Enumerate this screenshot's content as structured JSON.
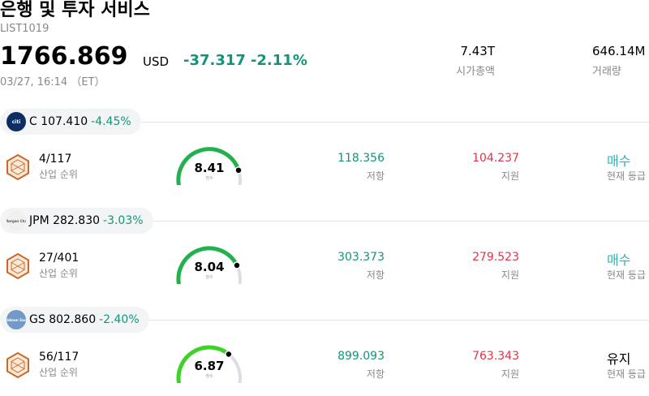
{
  "header": {
    "title": "은행 및 투자 서비스",
    "code": "LIST1019",
    "price": "1766.869",
    "currency": "USD",
    "change": "-37.317",
    "change_pct": "-2.11%",
    "timestamp": "03/27, 16:14 （ET）",
    "market_cap": {
      "value": "7.43T",
      "label": "시가총액"
    },
    "volume": {
      "value": "646.14M",
      "label": "거래량"
    }
  },
  "colors": {
    "up_green": "#11957a",
    "support_red": "#e8304a",
    "buy_teal": "#2ab7b4",
    "gauge_green": "#22b14c"
  },
  "stocks": [
    {
      "ticker": "C",
      "logo_text": "citi",
      "price": "107.410",
      "change_pct": "-4.45%",
      "rank": "4/117",
      "rank_label": "산업 순위",
      "score": "8.41",
      "score_fraction": 0.841,
      "score_label": "점수",
      "resistance": "118.356",
      "resistance_label": "저항",
      "support": "104.237",
      "support_label": "지원",
      "grade": "매수",
      "grade_label": "현재 등급",
      "grade_type": "buy"
    },
    {
      "ticker": "JPM",
      "logo_text": "JPMorgan Chase",
      "price": "282.830",
      "change_pct": "-3.03%",
      "rank": "27/401",
      "rank_label": "산업 순위",
      "score": "8.04",
      "score_fraction": 0.804,
      "score_label": "점수",
      "resistance": "303.373",
      "resistance_label": "저항",
      "support": "279.523",
      "support_label": "지원",
      "grade": "매수",
      "grade_label": "현재 등급",
      "grade_type": "buy"
    },
    {
      "ticker": "GS",
      "logo_text": "Goldman Sachs",
      "price": "802.860",
      "change_pct": "-2.40%",
      "rank": "56/117",
      "rank_label": "산업 순위",
      "score": "6.87",
      "score_fraction": 0.687,
      "score_label": "점수",
      "resistance": "899.093",
      "resistance_label": "저항",
      "support": "763.343",
      "support_label": "지원",
      "grade": "유지",
      "grade_label": "현재 등급",
      "grade_type": "hold"
    }
  ]
}
